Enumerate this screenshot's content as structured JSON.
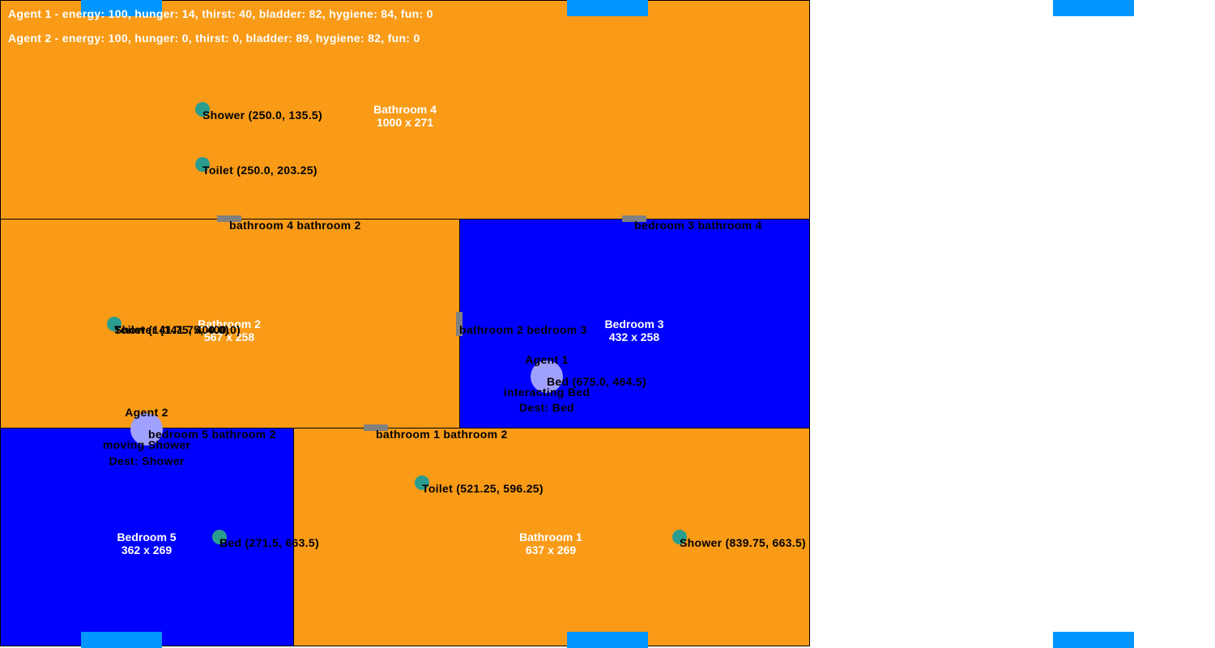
{
  "colors": {
    "bathroom": "#f99b17",
    "bedroom": "#0000ff",
    "object": "#2a9d8f",
    "agent": "#a0a0ff",
    "door": "#808080",
    "window": "#0096ff"
  },
  "status": {
    "agent1": "Agent 1 - energy: 100, hunger: 14, thirst: 40, bladder: 82, hygiene: 84, fun: 0",
    "agent2": "Agent 2 - energy: 100, hunger: 0, thirst: 0, bladder: 89, hygiene: 82, fun: 0"
  },
  "rooms": {
    "bathroom4": {
      "name": "Bathroom 4",
      "size": "1000 x 271"
    },
    "bathroom2": {
      "name": "Bathroom 2",
      "size": "567 x 258"
    },
    "bedroom3": {
      "name": "Bedroom 3",
      "size": "432 x 258"
    },
    "bedroom5": {
      "name": "Bedroom 5",
      "size": "362 x 269"
    },
    "bathroom1": {
      "name": "Bathroom 1",
      "size": "637 x 269"
    }
  },
  "objects": {
    "shower_b4": "Shower (250.0, 135.5)",
    "toilet_b4": "Toilet (250.0, 203.25)",
    "toilet_b2": "Toilet (141.75, 400.0)",
    "shower_b2": "Shower (141.75, 400.0)",
    "bed_bd3": "Bed (675.0, 464.5)",
    "toilet_b1": "Toilet (521.25, 596.25)",
    "bed_bd5": "Bed (271.5, 663.5)",
    "shower_b1": "Shower (839.75, 663.5)"
  },
  "doors": {
    "d_b4_b2": "bathroom 4 bathroom 2",
    "d_bd3_b4": "bedroom 3 bathroom 4",
    "d_b2_bd3": "bathroom 2 bedroom 3",
    "d_bd5_b2": "bedroom 5 bathroom 2",
    "d_b1_b2": "bathroom 1 bathroom 2"
  },
  "agents": {
    "agent1": {
      "name": "Agent 1",
      "state": "interacting Bed",
      "dest": "Dest: Bed"
    },
    "agent2": {
      "name": "Agent 2",
      "state": "moving Shower",
      "dest": "Dest: Shower"
    }
  }
}
